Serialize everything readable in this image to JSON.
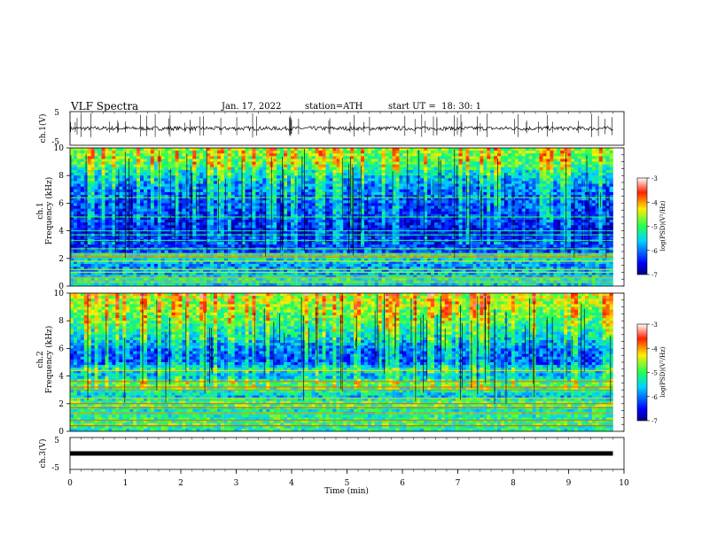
{
  "header": {
    "title": "VLF Spectra",
    "date": "Jan. 17, 2022",
    "station": "station=ATH",
    "start": "start UT =  18: 30: 1"
  },
  "chart_data": [
    {
      "type": "line",
      "name": "ch1-waveform",
      "ylabel": "ch.1(V)",
      "ylim": [
        -5,
        5
      ],
      "yticks": [
        "5",
        "-5"
      ],
      "x_extent_min": [
        0,
        9.8
      ],
      "baseline_volts": 0,
      "spike_count": 60
    },
    {
      "type": "heatmap",
      "name": "ch1-spectrogram",
      "ylabel": "ch.1\nFrequency (kHz)",
      "ylim": [
        0,
        10
      ],
      "yticks": [
        "0",
        "2",
        "4",
        "6",
        "8",
        "10"
      ],
      "x_extent_min": [
        0,
        9.8
      ],
      "colorbar": {
        "label": "log(PSD)(V²/Hz)",
        "range": [
          -7,
          -3
        ],
        "ticks": [
          "-3",
          "-4",
          "-5",
          "-6",
          "-7"
        ]
      },
      "profile_khz_logpsd": [
        [
          0,
          -5.6
        ],
        [
          0.5,
          -5.2
        ],
        [
          1,
          -5.8
        ],
        [
          1.5,
          -5.9
        ],
        [
          2,
          -5.4
        ],
        [
          2.2,
          -4.9
        ],
        [
          2.5,
          -6.1
        ],
        [
          3,
          -6.3
        ],
        [
          4,
          -6.6
        ],
        [
          5,
          -6.3
        ],
        [
          6,
          -6.2
        ],
        [
          7,
          -6.0
        ],
        [
          8,
          -5.6
        ],
        [
          8.5,
          -5.2
        ],
        [
          9,
          -4.9
        ],
        [
          10,
          -4.7
        ]
      ],
      "lines_khz": [
        0.3,
        0.6,
        1.0,
        1.2,
        1.8,
        2.1,
        2.3,
        2.7,
        3.3,
        3.7,
        4.0,
        5.0,
        6.4
      ]
    },
    {
      "type": "heatmap",
      "name": "ch2-spectrogram",
      "ylabel": "ch.2\nFrequency (kHz)",
      "ylim": [
        0,
        10
      ],
      "yticks": [
        "0",
        "2",
        "4",
        "6",
        "8",
        "10"
      ],
      "x_extent_min": [
        0,
        9.8
      ],
      "colorbar": {
        "label": "log(PSD)(V²/Hz)",
        "range": [
          -7,
          -3
        ],
        "ticks": [
          "-3",
          "-4",
          "-5",
          "-6",
          "-7"
        ]
      },
      "profile_khz_logpsd": [
        [
          0,
          -5.3
        ],
        [
          0.5,
          -5.0
        ],
        [
          1,
          -5.2
        ],
        [
          1.5,
          -5.3
        ],
        [
          2,
          -4.8
        ],
        [
          2.5,
          -5.6
        ],
        [
          3,
          -5.2
        ],
        [
          3.5,
          -5.0
        ],
        [
          4,
          -5.8
        ],
        [
          4.5,
          -5.4
        ],
        [
          5,
          -6.2
        ],
        [
          6,
          -6.0
        ],
        [
          7,
          -5.4
        ],
        [
          8,
          -5.0
        ],
        [
          9,
          -4.7
        ],
        [
          10,
          -4.5
        ]
      ],
      "lines_khz": [
        0.4,
        0.8,
        1.3,
        1.7,
        2.0,
        2.4,
        3.0,
        3.2,
        3.6,
        4.4
      ]
    },
    {
      "type": "line",
      "name": "ch3-waveform",
      "ylabel": "ch.3(V)",
      "ylim": [
        -5,
        5
      ],
      "yticks": [
        "5",
        "-5"
      ],
      "x_extent_min": [
        0,
        9.8
      ],
      "baseline_volts": 0
    }
  ],
  "time_axis": {
    "label": "Time (min)",
    "range": [
      0,
      10
    ],
    "ticks": [
      "0",
      "1",
      "2",
      "3",
      "4",
      "5",
      "6",
      "7",
      "8",
      "9",
      "10"
    ]
  }
}
